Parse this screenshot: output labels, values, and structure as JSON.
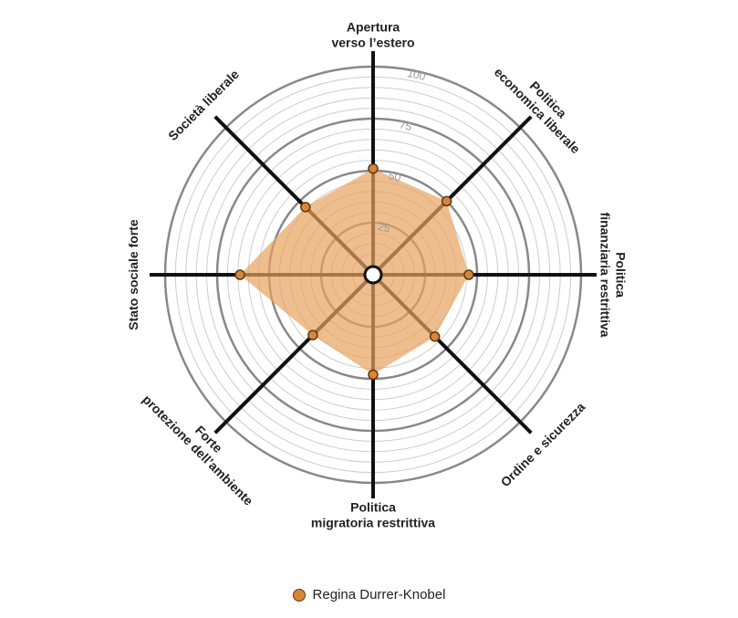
{
  "chart_data": {
    "type": "radar",
    "title": "",
    "axes": [
      "Apertura\nverso l’estero",
      "Politica\neconomica liberale",
      "Politica\nfinanziaria restrittiva",
      "Ordine e sicurezza",
      "Politica\nmigratoria restrittiva",
      "Forte\nprotezione dell’ambiente",
      "Stato sociale forte",
      "Società liberale"
    ],
    "ticks": [
      25,
      50,
      75,
      100
    ],
    "tick_labels": [
      "25",
      "50",
      "75",
      "100"
    ],
    "range": [
      0,
      100
    ],
    "series": [
      {
        "name": "Regina Durrer-Knobel",
        "values": [
          51,
          50,
          46,
          42,
          48,
          41,
          64,
          46
        ]
      }
    ],
    "legend_position": "bottom"
  },
  "colors": {
    "fill": "#e8a360",
    "point": "#d8863a",
    "point_stroke": "#5a3a10",
    "axis": "#111111",
    "ring": "#888888",
    "minor_ring": "#cccccc"
  }
}
